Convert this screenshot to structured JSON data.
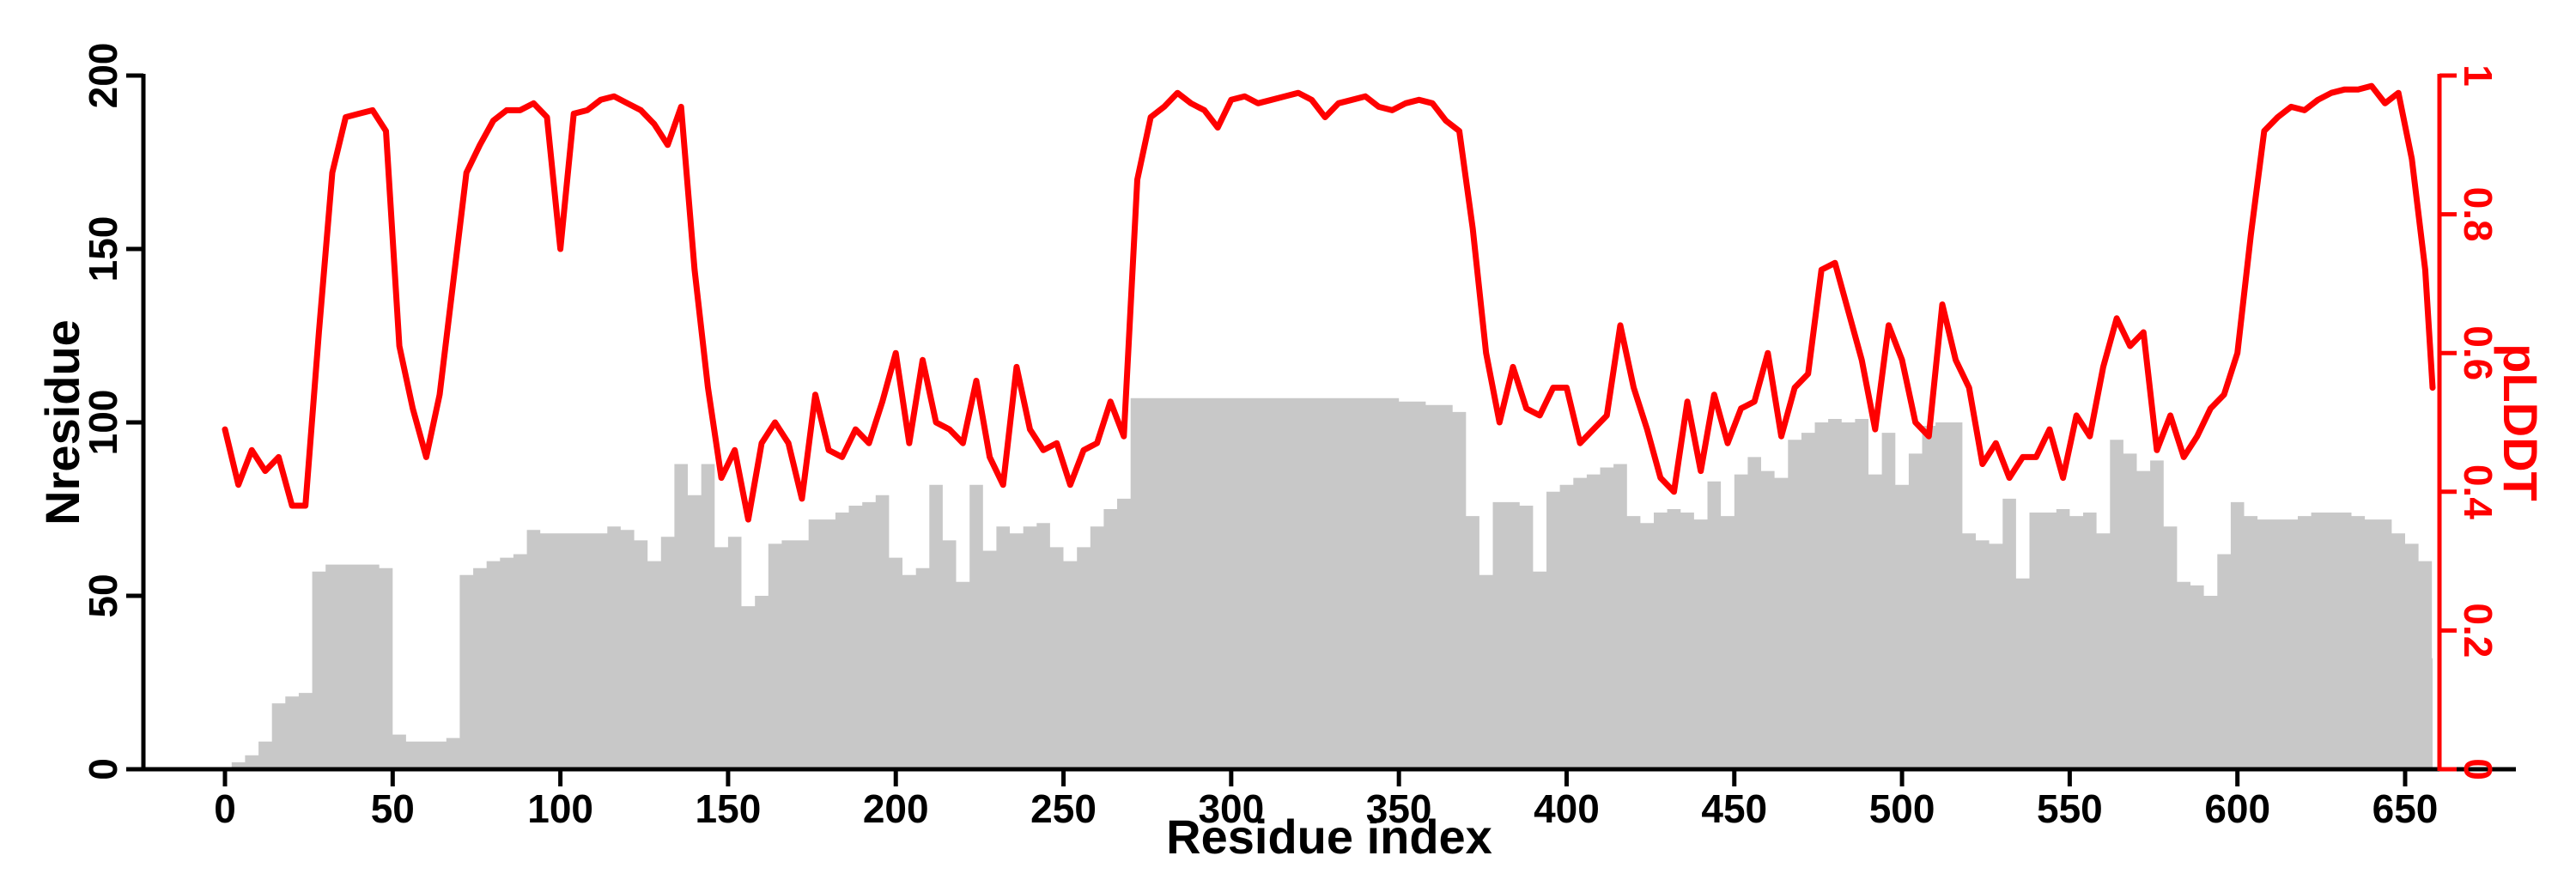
{
  "chart_data": {
    "type": "combo",
    "title": "",
    "x_axis": {
      "label": "Residue index",
      "tick_values": [
        0,
        50,
        100,
        150,
        200,
        250,
        300,
        350,
        400,
        450,
        500,
        550,
        600,
        650
      ],
      "tick_labels": [
        "0",
        "50",
        "100",
        "150",
        "200",
        "250",
        "300",
        "350",
        "400",
        "450",
        "500",
        "550",
        "600",
        "650"
      ],
      "range": [
        0,
        660
      ]
    },
    "left_axis": {
      "label": "Nresidue",
      "tick_values": [
        0,
        50,
        100,
        150,
        200
      ],
      "tick_labels": [
        "0",
        "50",
        "100",
        "150",
        "200"
      ],
      "range": [
        0,
        200
      ],
      "color": "#000000"
    },
    "right_axis": {
      "label": "pLDDT",
      "tick_values": [
        0,
        0.2,
        0.4,
        0.6,
        0.8,
        1
      ],
      "tick_labels": [
        "0",
        "0.2",
        "0.4",
        "0.6",
        "0.8",
        "1"
      ],
      "range": [
        0,
        1
      ],
      "color": "#ff0000"
    },
    "grid": false,
    "legend": "none",
    "background": "#ffffff",
    "x": [
      0,
      4,
      8,
      12,
      16,
      20,
      24,
      28,
      32,
      36,
      40,
      44,
      48,
      52,
      56,
      60,
      64,
      68,
      72,
      76,
      80,
      84,
      88,
      92,
      96,
      100,
      104,
      108,
      112,
      116,
      120,
      124,
      128,
      132,
      136,
      140,
      144,
      148,
      152,
      156,
      160,
      164,
      168,
      172,
      176,
      180,
      184,
      188,
      192,
      196,
      200,
      204,
      208,
      212,
      216,
      220,
      224,
      228,
      232,
      236,
      240,
      244,
      248,
      252,
      256,
      260,
      264,
      268,
      272,
      276,
      280,
      284,
      288,
      292,
      296,
      300,
      304,
      308,
      312,
      316,
      320,
      324,
      328,
      332,
      336,
      340,
      344,
      348,
      352,
      356,
      360,
      364,
      368,
      372,
      376,
      380,
      384,
      388,
      392,
      396,
      400,
      404,
      408,
      412,
      416,
      420,
      424,
      428,
      432,
      436,
      440,
      444,
      448,
      452,
      456,
      460,
      464,
      468,
      472,
      476,
      480,
      484,
      488,
      492,
      496,
      500,
      504,
      508,
      512,
      516,
      520,
      524,
      528,
      532,
      536,
      540,
      544,
      548,
      552,
      556,
      560,
      564,
      568,
      572,
      576,
      580,
      584,
      588,
      592,
      596,
      600,
      604,
      608,
      612,
      616,
      620,
      624,
      628,
      632,
      636,
      640,
      644,
      648,
      652,
      656,
      660
    ],
    "series": [
      {
        "name": "Nresidue",
        "type": "area",
        "axis": "left",
        "color": "#c8c8c8",
        "values": [
          0,
          2,
          4,
          8,
          19,
          21,
          22,
          57,
          59,
          59,
          59,
          59,
          58,
          10,
          8,
          8,
          8,
          9,
          56,
          58,
          60,
          61,
          62,
          69,
          68,
          68,
          68,
          68,
          68,
          70,
          69,
          66,
          60,
          67,
          88,
          79,
          88,
          64,
          67,
          47,
          50,
          65,
          66,
          66,
          72,
          72,
          74,
          76,
          77,
          79,
          61,
          56,
          58,
          82,
          66,
          54,
          82,
          63,
          70,
          68,
          70,
          71,
          64,
          60,
          64,
          70,
          75,
          78,
          107,
          107,
          107,
          107,
          107,
          107,
          107,
          107,
          107,
          107,
          107,
          107,
          107,
          107,
          107,
          107,
          107,
          107,
          107,
          107,
          106,
          106,
          105,
          105,
          103,
          73,
          56,
          77,
          77,
          76,
          57,
          80,
          82,
          84,
          85,
          87,
          88,
          73,
          71,
          74,
          75,
          74,
          72,
          83,
          73,
          85,
          90,
          86,
          84,
          95,
          97,
          100,
          101,
          100,
          101,
          85,
          97,
          82,
          91,
          99,
          100,
          100,
          68,
          66,
          65,
          78,
          55,
          74,
          74,
          75,
          73,
          74,
          68,
          95,
          91,
          86,
          89,
          70,
          54,
          53,
          50,
          62,
          77,
          73,
          72,
          72,
          72,
          73,
          74,
          74,
          74,
          73,
          72,
          72,
          68,
          65,
          60,
          32
        ]
      },
      {
        "name": "pLDDT",
        "type": "line",
        "axis": "right",
        "color": "#ff0000",
        "values": [
          0.49,
          0.41,
          0.46,
          0.43,
          0.45,
          0.38,
          0.38,
          0.63,
          0.86,
          0.94,
          0.945,
          0.95,
          0.92,
          0.61,
          0.52,
          0.45,
          0.54,
          0.7,
          0.86,
          0.9,
          0.935,
          0.95,
          0.95,
          0.96,
          0.94,
          0.75,
          0.945,
          0.95,
          0.965,
          0.97,
          0.96,
          0.95,
          0.93,
          0.9,
          0.955,
          0.72,
          0.55,
          0.42,
          0.46,
          0.36,
          0.47,
          0.5,
          0.47,
          0.39,
          0.54,
          0.46,
          0.45,
          0.49,
          0.47,
          0.53,
          0.6,
          0.47,
          0.59,
          0.5,
          0.49,
          0.47,
          0.56,
          0.45,
          0.41,
          0.58,
          0.49,
          0.46,
          0.47,
          0.41,
          0.46,
          0.47,
          0.53,
          0.48,
          0.85,
          0.94,
          0.955,
          0.975,
          0.96,
          0.95,
          0.925,
          0.965,
          0.97,
          0.96,
          0.965,
          0.97,
          0.975,
          0.965,
          0.94,
          0.96,
          0.965,
          0.97,
          0.955,
          0.95,
          0.96,
          0.965,
          0.96,
          0.935,
          0.92,
          0.78,
          0.6,
          0.5,
          0.58,
          0.52,
          0.51,
          0.55,
          0.55,
          0.47,
          0.49,
          0.51,
          0.64,
          0.55,
          0.49,
          0.42,
          0.4,
          0.53,
          0.43,
          0.54,
          0.47,
          0.52,
          0.53,
          0.6,
          0.48,
          0.55,
          0.57,
          0.72,
          0.73,
          0.66,
          0.59,
          0.49,
          0.64,
          0.59,
          0.5,
          0.48,
          0.67,
          0.59,
          0.55,
          0.44,
          0.47,
          0.42,
          0.45,
          0.45,
          0.49,
          0.42,
          0.51,
          0.48,
          0.58,
          0.65,
          0.61,
          0.63,
          0.46,
          0.51,
          0.45,
          0.48,
          0.52,
          0.54,
          0.6,
          0.77,
          0.92,
          0.94,
          0.955,
          0.95,
          0.965,
          0.975,
          0.98,
          0.98,
          0.985,
          0.96,
          0.975,
          0.88,
          0.72,
          0.55
        ]
      }
    ]
  }
}
